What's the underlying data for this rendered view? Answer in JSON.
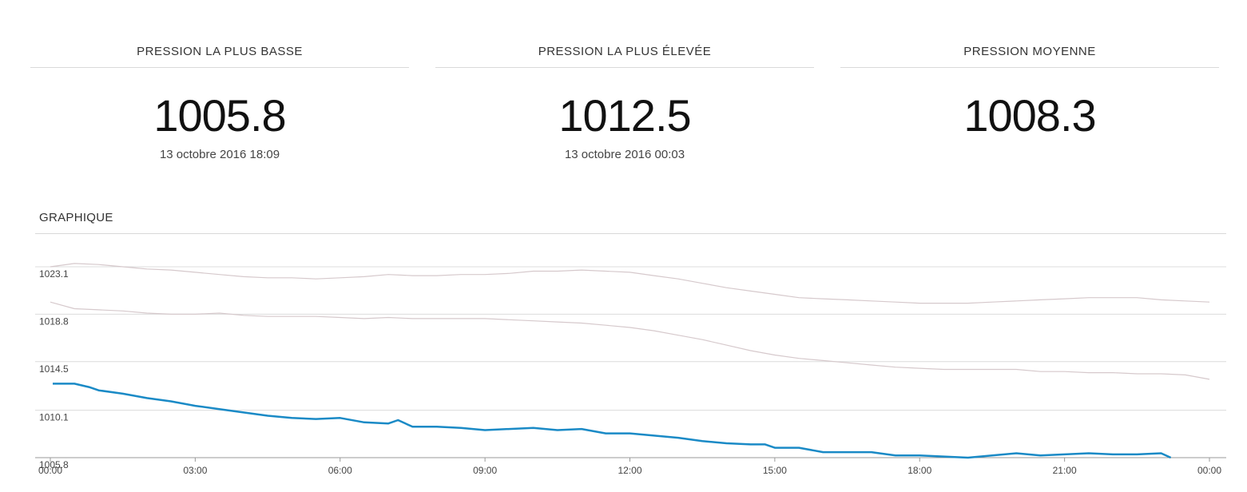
{
  "stats": {
    "min": {
      "title": "PRESSION LA PLUS BASSE",
      "value": "1005.8",
      "date": "13 octobre 2016 18:09"
    },
    "max": {
      "title": "PRESSION LA PLUS ÉLEVÉE",
      "value": "1012.5",
      "date": "13 octobre 2016 00:03"
    },
    "avg": {
      "title": "PRESSION MOYENNE",
      "value": "1008.3"
    }
  },
  "graph": {
    "title": "GRAPHIQUE"
  },
  "colors": {
    "current": "#1a8ac6",
    "reference": "#d6c9cc",
    "grid": "#dcdcdc"
  },
  "chart_data": {
    "type": "line",
    "x_unit": "hours",
    "xlim": [
      0,
      24
    ],
    "ylim": [
      1005.8,
      1023.1
    ],
    "yticks": [
      1005.8,
      1010.1,
      1014.5,
      1018.8,
      1023.1
    ],
    "ytick_labels": [
      "1005.8",
      "1010.1",
      "1014.5",
      "1018.8",
      "1023.1"
    ],
    "xticks": [
      0,
      3,
      6,
      9,
      12,
      15,
      18,
      21,
      24
    ],
    "xtick_labels": [
      "00:00",
      "03:00",
      "06:00",
      "09:00",
      "12:00",
      "15:00",
      "18:00",
      "21:00",
      "00:00"
    ],
    "grid": true,
    "series": [
      {
        "role": "current",
        "x": [
          0.05,
          0.5,
          0.8,
          1.0,
          1.5,
          2.0,
          2.5,
          3.0,
          3.5,
          4.0,
          4.5,
          5.0,
          5.5,
          6.0,
          6.5,
          7.0,
          7.2,
          7.5,
          8.0,
          8.5,
          9.0,
          9.5,
          10.0,
          10.5,
          11.0,
          11.5,
          12.0,
          12.5,
          13.0,
          13.5,
          14.0,
          14.5,
          14.8,
          15.0,
          15.5,
          16.0,
          16.5,
          17.0,
          17.5,
          18.0,
          18.5,
          19.0,
          19.5,
          20.0,
          20.5,
          21.0,
          21.5,
          22.0,
          22.5,
          23.0,
          23.2
        ],
        "y": [
          1012.5,
          1012.5,
          1012.2,
          1011.9,
          1011.6,
          1011.2,
          1010.9,
          1010.5,
          1010.2,
          1009.9,
          1009.6,
          1009.4,
          1009.3,
          1009.4,
          1009.0,
          1008.9,
          1009.2,
          1008.6,
          1008.6,
          1008.5,
          1008.3,
          1008.4,
          1008.5,
          1008.3,
          1008.4,
          1008.0,
          1008.0,
          1007.8,
          1007.6,
          1007.3,
          1007.1,
          1007.0,
          1007.0,
          1006.7,
          1006.7,
          1006.3,
          1006.3,
          1006.3,
          1006.0,
          1006.0,
          1005.9,
          1005.8,
          1006.0,
          1006.2,
          1006.0,
          1006.1,
          1006.2,
          1006.1,
          1006.1,
          1006.2,
          1005.8
        ]
      },
      {
        "role": "reference-upper",
        "x": [
          0,
          0.5,
          1.0,
          1.5,
          2.0,
          2.5,
          3.0,
          3.5,
          4.0,
          4.5,
          5.0,
          5.5,
          6.0,
          6.5,
          7.0,
          7.5,
          8.0,
          8.5,
          9.0,
          9.5,
          10.0,
          10.5,
          11.0,
          11.5,
          12.0,
          12.5,
          13.0,
          13.5,
          14.0,
          14.5,
          15.0,
          15.5,
          16.0,
          16.5,
          17.0,
          17.5,
          18.0,
          18.5,
          19.0,
          19.5,
          20.0,
          20.5,
          21.0,
          21.5,
          22.0,
          22.5,
          23.0,
          23.5,
          24.0
        ],
        "y": [
          1023.1,
          1023.4,
          1023.3,
          1023.1,
          1022.9,
          1022.8,
          1022.6,
          1022.4,
          1022.2,
          1022.1,
          1022.1,
          1022.0,
          1022.1,
          1022.2,
          1022.4,
          1022.3,
          1022.3,
          1022.4,
          1022.4,
          1022.5,
          1022.7,
          1022.7,
          1022.8,
          1022.7,
          1022.6,
          1022.3,
          1022.0,
          1021.6,
          1021.2,
          1020.9,
          1020.6,
          1020.3,
          1020.2,
          1020.1,
          1020.0,
          1019.9,
          1019.8,
          1019.8,
          1019.8,
          1019.9,
          1020.0,
          1020.1,
          1020.2,
          1020.3,
          1020.3,
          1020.3,
          1020.1,
          1020.0,
          1019.9
        ]
      },
      {
        "role": "reference-lower",
        "x": [
          0,
          0.5,
          1.0,
          1.5,
          2.0,
          2.5,
          3.0,
          3.5,
          4.0,
          4.5,
          5.0,
          5.5,
          6.0,
          6.5,
          7.0,
          7.5,
          8.0,
          8.5,
          9.0,
          9.5,
          10.0,
          10.5,
          11.0,
          11.5,
          12.0,
          12.5,
          13.0,
          13.5,
          14.0,
          14.5,
          15.0,
          15.5,
          16.0,
          16.5,
          17.0,
          17.5,
          18.0,
          18.5,
          19.0,
          19.5,
          20.0,
          20.5,
          21.0,
          21.5,
          22.0,
          22.5,
          23.0,
          23.5,
          24.0
        ],
        "y": [
          1019.9,
          1019.3,
          1019.2,
          1019.1,
          1018.9,
          1018.8,
          1018.8,
          1018.9,
          1018.7,
          1018.6,
          1018.6,
          1018.6,
          1018.5,
          1018.4,
          1018.5,
          1018.4,
          1018.4,
          1018.4,
          1018.4,
          1018.3,
          1018.2,
          1018.1,
          1018.0,
          1017.8,
          1017.6,
          1017.3,
          1016.9,
          1016.5,
          1016.0,
          1015.5,
          1015.1,
          1014.8,
          1014.6,
          1014.4,
          1014.2,
          1014.0,
          1013.9,
          1013.8,
          1013.8,
          1013.8,
          1013.8,
          1013.6,
          1013.6,
          1013.5,
          1013.5,
          1013.4,
          1013.4,
          1013.3,
          1012.9
        ]
      }
    ]
  }
}
